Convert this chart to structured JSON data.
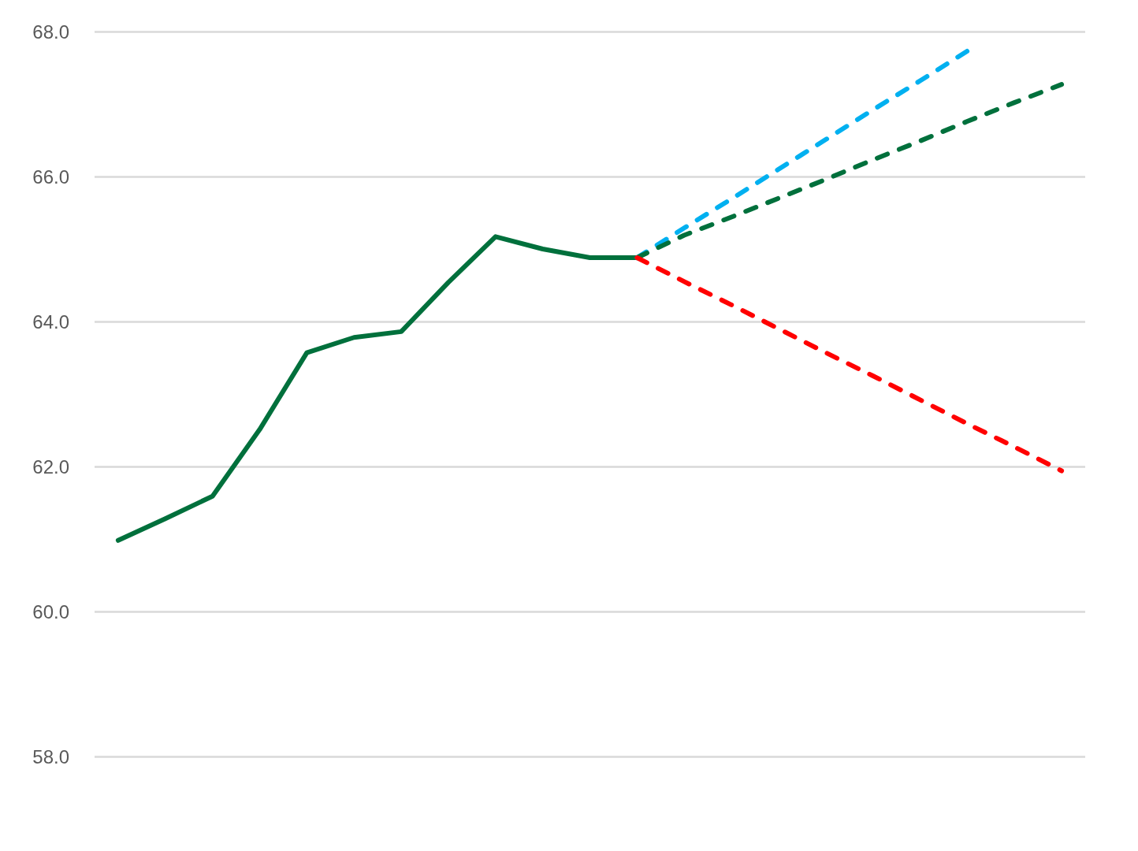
{
  "chart_data": {
    "type": "line",
    "categories": [
      null,
      null,
      null,
      null,
      null,
      null,
      null,
      null,
      null,
      null,
      null,
      null,
      null,
      null,
      null,
      null,
      null,
      null,
      null,
      null,
      null
    ],
    "series": [
      {
        "color": "#00703c",
        "line_style": "solid",
        "values": [
          60.98,
          61.28,
          61.59,
          62.51,
          63.57,
          63.78,
          63.86,
          64.54,
          65.17,
          65.0,
          64.88,
          64.88,
          null,
          null,
          null,
          null,
          null,
          null,
          null,
          null,
          null
        ]
      },
      {
        "color": "#00b0f0",
        "line_style": "dashed",
        "values": [
          null,
          null,
          null,
          null,
          null,
          null,
          null,
          null,
          null,
          null,
          null,
          64.88,
          65.29,
          65.69,
          66.1,
          66.51,
          66.92,
          67.32,
          67.73,
          null,
          null
        ]
      },
      {
        "color": "#00703c",
        "line_style": "dashed",
        "values": [
          null,
          null,
          null,
          null,
          null,
          null,
          null,
          null,
          null,
          null,
          null,
          64.88,
          65.19,
          65.44,
          65.7,
          65.96,
          66.23,
          66.49,
          66.76,
          67.02,
          67.27
        ]
      },
      {
        "color": "#ff0000",
        "line_style": "dashed",
        "values": [
          null,
          null,
          null,
          null,
          null,
          null,
          null,
          null,
          null,
          null,
          null,
          64.88,
          64.55,
          64.23,
          63.9,
          63.57,
          63.25,
          62.92,
          62.59,
          62.27,
          61.94
        ]
      }
    ],
    "ylim": [
      58,
      68
    ],
    "yticks": [
      {
        "value": 58,
        "label": "58.0"
      },
      {
        "value": 60,
        "label": "60.0"
      },
      {
        "value": 62,
        "label": "62.0"
      },
      {
        "value": 64,
        "label": "64.0"
      },
      {
        "value": 66,
        "label": "66.0"
      },
      {
        "value": 68,
        "label": "68.0"
      }
    ],
    "grid": "y",
    "marker": "none"
  }
}
